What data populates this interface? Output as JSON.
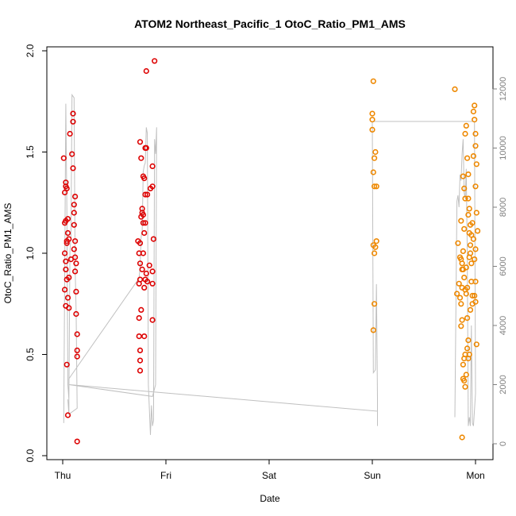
{
  "chart_data": {
    "type": "scatter",
    "title": "ATOM2 Northeast_Pacific_1 OtoC_Ratio_PM1_AMS",
    "xlabel": "Date",
    "ylabel": "OtoC_Ratio_PM1_AMS",
    "x_ticks": [
      {
        "label": "Thu",
        "day": 0
      },
      {
        "label": "Fri",
        "day": 1
      },
      {
        "label": "Sat",
        "day": 2
      },
      {
        "label": "Sun",
        "day": 3
      },
      {
        "label": "Mon",
        "day": 4
      }
    ],
    "ylim": [
      0,
      2.0
    ],
    "y_ticks": [
      0.0,
      0.5,
      1.0,
      1.5,
      2.0
    ],
    "y_tick_labels": [
      "0.0",
      "0.5",
      "1.0",
      "1.5",
      "2.0"
    ],
    "y2lim": [
      0,
      12000
    ],
    "y2_ticks": [
      0,
      2000,
      4000,
      6000,
      8000,
      10000,
      12000
    ],
    "y2_tick_labels": [
      "0",
      "2000",
      "4000",
      "6000",
      "8000",
      "10000",
      "12000"
    ],
    "colors": {
      "red": "#dd0000",
      "orange": "#ee8800",
      "line": "#c0c0c0"
    },
    "series": [
      {
        "color": "red",
        "points": [
          [
            0.01,
            1.47
          ],
          [
            0.02,
            1.3
          ],
          [
            0.03,
            1.35
          ],
          [
            0.03,
            1.16
          ],
          [
            0.02,
            1.0
          ],
          [
            0.03,
            0.92
          ],
          [
            0.02,
            0.82
          ],
          [
            0.04,
            0.87
          ],
          [
            0.03,
            0.96
          ],
          [
            0.04,
            1.05
          ],
          [
            0.05,
            1.1
          ],
          [
            0.04,
            1.06
          ],
          [
            0.02,
            1.15
          ],
          [
            0.03,
            0.74
          ],
          [
            0.04,
            0.45
          ],
          [
            0.05,
            0.2
          ],
          [
            0.06,
            0.73
          ],
          [
            0.05,
            0.78
          ],
          [
            0.05,
            1.17
          ],
          [
            0.06,
            1.07
          ],
          [
            0.03,
            1.33
          ],
          [
            0.04,
            1.32
          ],
          [
            0.07,
            1.59
          ],
          [
            0.09,
            1.49
          ],
          [
            0.1,
            1.69
          ],
          [
            0.1,
            1.65
          ],
          [
            0.11,
            1.24
          ],
          [
            0.11,
            1.2
          ],
          [
            0.12,
            1.28
          ],
          [
            0.11,
            1.14
          ],
          [
            0.12,
            1.06
          ],
          [
            0.12,
            0.98
          ],
          [
            0.13,
            0.95
          ],
          [
            0.12,
            0.91
          ],
          [
            0.13,
            0.81
          ],
          [
            0.13,
            0.7
          ],
          [
            0.14,
            0.6
          ],
          [
            0.14,
            0.52
          ],
          [
            0.14,
            0.49
          ],
          [
            0.14,
            0.07
          ],
          [
            0.1,
            1.42
          ],
          [
            0.11,
            1.02
          ],
          [
            0.08,
            0.97
          ],
          [
            0.06,
            0.88
          ],
          [
            0.74,
            0.85
          ],
          [
            0.75,
            0.95
          ],
          [
            0.74,
            1.0
          ],
          [
            0.75,
            1.05
          ],
          [
            0.74,
            0.68
          ],
          [
            0.74,
            0.59
          ],
          [
            0.75,
            0.52
          ],
          [
            0.75,
            0.47
          ],
          [
            0.75,
            0.42
          ],
          [
            0.75,
            1.55
          ],
          [
            0.76,
            1.47
          ],
          [
            0.77,
            1.2
          ],
          [
            0.78,
            1.15
          ],
          [
            0.78,
            1.38
          ],
          [
            0.79,
            1.37
          ],
          [
            0.8,
            1.29
          ],
          [
            0.8,
            1.52
          ],
          [
            0.81,
            1.52
          ],
          [
            0.81,
            1.9
          ],
          [
            0.79,
            1.1
          ],
          [
            0.78,
            1.0
          ],
          [
            0.77,
            0.92
          ],
          [
            0.79,
            0.83
          ],
          [
            0.8,
            0.87
          ],
          [
            0.81,
            0.9
          ],
          [
            0.82,
            0.86
          ],
          [
            0.84,
            0.94
          ],
          [
            0.85,
            1.32
          ],
          [
            0.87,
            1.33
          ],
          [
            0.87,
            1.43
          ],
          [
            0.88,
            1.07
          ],
          [
            0.87,
            0.91
          ],
          [
            0.87,
            0.85
          ],
          [
            0.87,
            0.67
          ],
          [
            0.89,
            1.95
          ],
          [
            0.76,
            1.18
          ],
          [
            0.77,
            1.22
          ],
          [
            0.78,
            1.19
          ],
          [
            0.8,
            1.15
          ],
          [
            0.79,
            0.59
          ],
          [
            0.76,
            0.72
          ],
          [
            0.75,
            0.87
          ],
          [
            0.73,
            1.06
          ],
          [
            0.82,
            1.29
          ]
        ]
      },
      {
        "color": "orange",
        "points": [
          [
            3.0,
            1.69
          ],
          [
            3.0,
            1.66
          ],
          [
            3.01,
            1.85
          ],
          [
            3.02,
            1.47
          ],
          [
            3.03,
            1.5
          ],
          [
            3.01,
            1.4
          ],
          [
            3.02,
            1.33
          ],
          [
            3.04,
            1.33
          ],
          [
            3.01,
            1.04
          ],
          [
            3.02,
            1.0
          ],
          [
            3.03,
            1.03
          ],
          [
            3.04,
            1.06
          ],
          [
            3.02,
            0.75
          ],
          [
            3.01,
            0.62
          ],
          [
            3.0,
            1.61
          ],
          [
            3.82,
            0.8
          ],
          [
            3.83,
            1.05
          ],
          [
            3.84,
            0.85
          ],
          [
            3.86,
            0.75
          ],
          [
            3.86,
            0.64
          ],
          [
            3.87,
            0.67
          ],
          [
            3.88,
            0.45
          ],
          [
            3.87,
            0.09
          ],
          [
            3.89,
            0.48
          ],
          [
            3.9,
            0.5
          ],
          [
            3.85,
            0.98
          ],
          [
            3.86,
            1.16
          ],
          [
            3.87,
            0.95
          ],
          [
            3.88,
            1.01
          ],
          [
            3.88,
            0.92
          ],
          [
            3.89,
            1.12
          ],
          [
            3.89,
            1.32
          ],
          [
            3.9,
            1.27
          ],
          [
            3.91,
            1.63
          ],
          [
            3.92,
            1.47
          ],
          [
            3.93,
            1.39
          ],
          [
            3.93,
            1.19
          ],
          [
            3.94,
            1.22
          ],
          [
            3.95,
            1.14
          ],
          [
            3.95,
            1.0
          ],
          [
            3.96,
            0.95
          ],
          [
            3.96,
            0.86
          ],
          [
            3.97,
            0.79
          ],
          [
            3.97,
            0.75
          ],
          [
            3.98,
            1.48
          ],
          [
            3.98,
            1.7
          ],
          [
            3.99,
            1.73
          ],
          [
            3.99,
            1.66
          ],
          [
            4.0,
            1.59
          ],
          [
            4.0,
            1.53
          ],
          [
            4.01,
            1.44
          ],
          [
            4.0,
            1.33
          ],
          [
            4.01,
            1.2
          ],
          [
            4.02,
            1.11
          ],
          [
            4.0,
            1.02
          ],
          [
            3.99,
            0.97
          ],
          [
            4.0,
            0.86
          ],
          [
            3.99,
            0.79
          ],
          [
            4.0,
            0.76
          ],
          [
            4.01,
            0.55
          ],
          [
            3.92,
            0.53
          ],
          [
            3.93,
            0.57
          ],
          [
            3.94,
            0.5
          ],
          [
            3.93,
            0.48
          ],
          [
            3.91,
            0.4
          ],
          [
            3.9,
            0.34
          ],
          [
            3.89,
            0.37
          ],
          [
            3.88,
            0.38
          ],
          [
            3.8,
            1.81
          ],
          [
            3.86,
            0.97
          ],
          [
            3.87,
            0.92
          ],
          [
            3.89,
            0.88
          ],
          [
            3.9,
            0.82
          ],
          [
            3.91,
            0.8
          ],
          [
            3.92,
            0.83
          ],
          [
            3.94,
            0.98
          ],
          [
            3.95,
            1.04
          ],
          [
            3.96,
            1.09
          ],
          [
            3.97,
            1.15
          ],
          [
            3.98,
            1.07
          ],
          [
            3.88,
            1.38
          ],
          [
            3.9,
            1.59
          ],
          [
            3.93,
            1.27
          ],
          [
            3.94,
            1.1
          ],
          [
            3.91,
            0.93
          ],
          [
            3.85,
            0.78
          ],
          [
            3.87,
            0.83
          ],
          [
            3.92,
            0.68
          ],
          [
            3.95,
            0.72
          ]
        ]
      }
    ],
    "line_series": {
      "axis": "right",
      "points": [
        [
          0.01,
          700
        ],
        [
          0.03,
          11500
        ],
        [
          0.04,
          8000
        ],
        [
          0.05,
          2000
        ],
        [
          0.06,
          1500
        ],
        [
          0.07,
          6500
        ],
        [
          0.08,
          7000
        ],
        [
          0.09,
          11800
        ],
        [
          0.11,
          11700
        ],
        [
          0.12,
          6000
        ],
        [
          0.13,
          4500
        ],
        [
          0.14,
          1200
        ],
        [
          0.06,
          1000
        ],
        [
          0.05,
          1500
        ],
        [
          0.06,
          1000
        ],
        [
          0.06,
          2200
        ],
        [
          0.74,
          5600
        ],
        [
          0.75,
          6000
        ],
        [
          0.76,
          7000
        ],
        [
          0.77,
          7200
        ],
        [
          0.78,
          9200
        ],
        [
          0.79,
          9400
        ],
        [
          0.8,
          9500
        ],
        [
          0.81,
          10700
        ],
        [
          0.82,
          10500
        ],
        [
          0.83,
          2000
        ],
        [
          0.85,
          300
        ],
        [
          0.86,
          1300
        ],
        [
          0.87,
          600
        ],
        [
          0.88,
          800
        ],
        [
          0.89,
          10300
        ],
        [
          0.9,
          9800
        ],
        [
          0.91,
          10700
        ],
        [
          0.9,
          2000
        ],
        [
          0.87,
          1600
        ],
        [
          0.06,
          2000
        ],
        [
          3.05,
          1100
        ],
        [
          3.05,
          1300
        ],
        [
          3.05,
          600
        ],
        [
          3.05,
          1500
        ],
        [
          3.04,
          5400
        ],
        [
          3.03,
          2500
        ],
        [
          3.01,
          2400
        ],
        [
          3.0,
          10900
        ],
        [
          3.03,
          10900
        ],
        [
          3.99,
          10900
        ],
        [
          4.0,
          1700
        ],
        [
          3.98,
          600
        ],
        [
          3.97,
          700
        ],
        [
          3.96,
          4000
        ],
        [
          3.95,
          600
        ],
        [
          3.94,
          900
        ],
        [
          3.93,
          600
        ],
        [
          3.92,
          6500
        ],
        [
          3.91,
          9300
        ],
        [
          3.9,
          8300
        ],
        [
          3.89,
          8500
        ],
        [
          3.88,
          10300
        ],
        [
          3.87,
          9800
        ],
        [
          3.86,
          8900
        ],
        [
          3.85,
          9100
        ],
        [
          3.84,
          8000
        ],
        [
          3.83,
          8400
        ],
        [
          3.82,
          8200
        ],
        [
          3.8,
          900
        ]
      ]
    }
  }
}
